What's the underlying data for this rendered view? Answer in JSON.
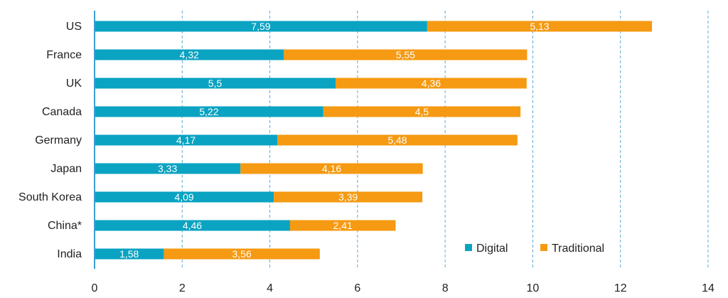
{
  "chart_data": {
    "type": "bar",
    "orientation": "horizontal",
    "stacked": true,
    "title": "",
    "xlabel": "",
    "ylabel": "",
    "xlim": [
      0,
      14
    ],
    "xticks": [
      0,
      2,
      4,
      6,
      8,
      10,
      12,
      14
    ],
    "grid": "vertical dashed",
    "legend_position": "bottom-right",
    "categories": [
      "US",
      "France",
      "UK",
      "Canada",
      "Germany",
      "Japan",
      "South Korea",
      "China*",
      "India"
    ],
    "series": [
      {
        "name": "Digital",
        "color": "#0aa3c2",
        "values": [
          7.59,
          4.32,
          5.5,
          5.22,
          4.17,
          3.33,
          4.09,
          4.46,
          1.58
        ],
        "labels": [
          "7,59",
          "4,32",
          "5,5",
          "5,22",
          "4,17",
          "3,33",
          "4,09",
          "4,46",
          "1,58"
        ]
      },
      {
        "name": "Traditional",
        "color": "#f59a12",
        "values": [
          5.13,
          5.55,
          4.36,
          4.5,
          5.48,
          4.16,
          3.39,
          2.41,
          3.56
        ],
        "labels": [
          "5,13",
          "5,55",
          "4,36",
          "4,5",
          "5,48",
          "4,16",
          "3,39",
          "2,41",
          "3,56"
        ]
      }
    ]
  },
  "colors": {
    "gridline": "#5aa9d6",
    "axis": "#3b9ed6",
    "text": "#222222"
  }
}
